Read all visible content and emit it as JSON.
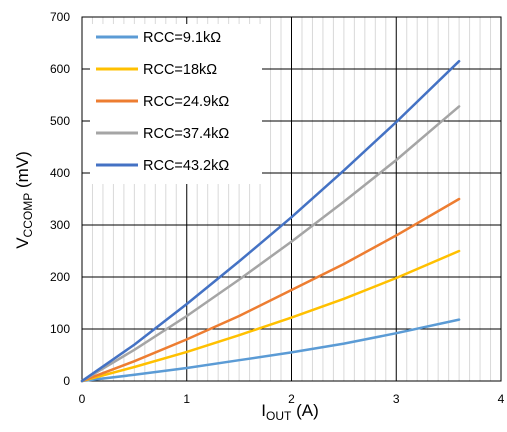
{
  "chart_data": {
    "type": "line",
    "title": "",
    "xlabel": "I",
    "xlabel_sub": "OUT",
    "xlabel_unit": " (A)",
    "ylabel": "V",
    "ylabel_sub": "CCOMP",
    "ylabel_unit": " (mV)",
    "xlim": [
      0,
      4
    ],
    "ylim": [
      0,
      700
    ],
    "xticks": [
      "0",
      "1",
      "2",
      "3",
      "4"
    ],
    "yticks": [
      "0",
      "100",
      "200",
      "300",
      "400",
      "500",
      "600",
      "700"
    ],
    "grid": true,
    "legend_position": "top-left",
    "series": [
      {
        "name": "RCC=9.1kΩ",
        "color": "#5b9bd5",
        "x": [
          0,
          0.5,
          1,
          1.5,
          2,
          2.5,
          3,
          3.6
        ],
        "y": [
          0,
          12,
          25,
          40,
          55,
          72,
          92,
          118
        ]
      },
      {
        "name": "RCC=18kΩ",
        "color": "#ffc000",
        "x": [
          0,
          0.5,
          1,
          1.5,
          2,
          2.5,
          3,
          3.6
        ],
        "y": [
          0,
          27,
          56,
          88,
          122,
          158,
          198,
          250
        ]
      },
      {
        "name": "RCC=24.9kΩ",
        "color": "#ed7d31",
        "x": [
          0,
          0.5,
          1,
          1.5,
          2,
          2.5,
          3,
          3.6
        ],
        "y": [
          0,
          38,
          80,
          125,
          175,
          225,
          280,
          350
        ]
      },
      {
        "name": "RCC=37.4kΩ",
        "color": "#a5a5a5",
        "x": [
          0,
          0.5,
          1,
          1.5,
          2,
          2.5,
          3,
          3.6
        ],
        "y": [
          0,
          60,
          125,
          195,
          268,
          345,
          425,
          528
        ]
      },
      {
        "name": "RCC=43.2kΩ",
        "color": "#4472c4",
        "x": [
          0,
          0.5,
          1,
          1.5,
          2,
          2.5,
          3,
          3.6
        ],
        "y": [
          0,
          70,
          148,
          230,
          315,
          405,
          498,
          615
        ]
      }
    ]
  }
}
